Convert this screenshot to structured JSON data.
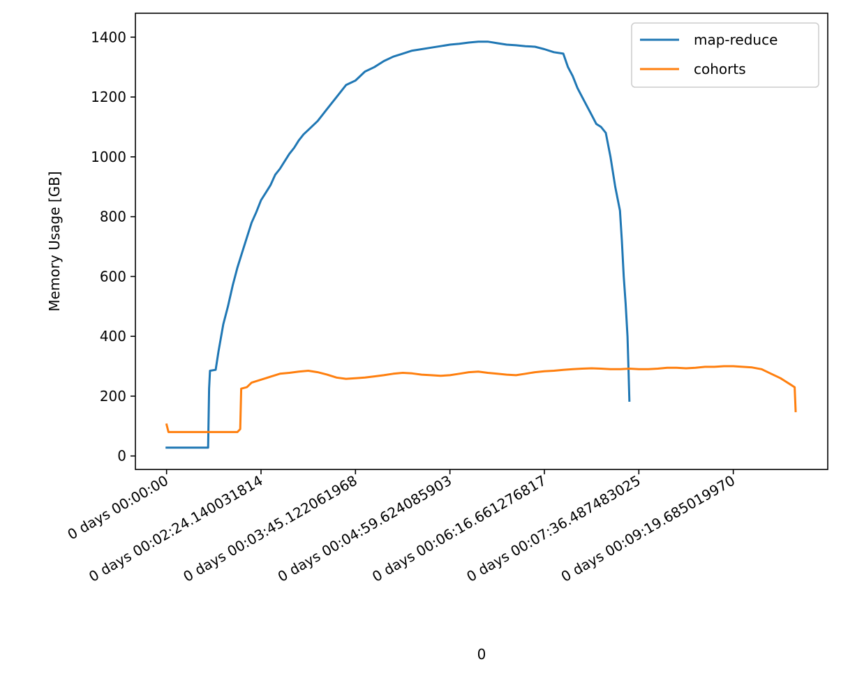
{
  "chart_data": {
    "type": "line",
    "title": "",
    "xlabel": "0",
    "ylabel": "Memory Usage [GB]",
    "x_tick_labels": [
      "0 days 00:00:00",
      "0 days 00:02:24.140031814",
      "0 days 00:03:45.122061968",
      "0 days 00:04:59.624085903",
      "0 days 00:06:16.661276817",
      "0 days 00:07:36.487483025",
      "0 days 00:09:19.685019970"
    ],
    "x_tick_index": [
      0,
      10,
      20,
      30,
      40,
      50,
      60
    ],
    "xlim": [
      -3.3,
      70
    ],
    "ylim": [
      -45,
      1480
    ],
    "yticks": [
      0,
      200,
      400,
      600,
      800,
      1000,
      1200,
      1400
    ],
    "grid": false,
    "legend_position": "top-right",
    "series": [
      {
        "name": "map-reduce",
        "color": "#1f77b4",
        "points": [
          [
            0,
            28
          ],
          [
            4.4,
            28
          ],
          [
            4.5,
            225
          ],
          [
            4.6,
            285
          ],
          [
            5.2,
            288
          ],
          [
            5.5,
            350
          ],
          [
            6,
            440
          ],
          [
            6.5,
            500
          ],
          [
            7,
            570
          ],
          [
            7.5,
            630
          ],
          [
            8,
            680
          ],
          [
            8.5,
            730
          ],
          [
            9,
            780
          ],
          [
            9.5,
            815
          ],
          [
            10,
            855
          ],
          [
            10.5,
            880
          ],
          [
            11,
            905
          ],
          [
            11.5,
            940
          ],
          [
            12,
            960
          ],
          [
            12.5,
            985
          ],
          [
            13,
            1010
          ],
          [
            13.5,
            1030
          ],
          [
            14,
            1055
          ],
          [
            14.5,
            1075
          ],
          [
            15,
            1090
          ],
          [
            16,
            1120
          ],
          [
            17,
            1160
          ],
          [
            18,
            1200
          ],
          [
            19,
            1240
          ],
          [
            20,
            1255
          ],
          [
            21,
            1285
          ],
          [
            22,
            1300
          ],
          [
            23,
            1320
          ],
          [
            24,
            1335
          ],
          [
            25,
            1345
          ],
          [
            26,
            1355
          ],
          [
            27,
            1360
          ],
          [
            28,
            1365
          ],
          [
            29,
            1370
          ],
          [
            30,
            1375
          ],
          [
            31,
            1378
          ],
          [
            32,
            1382
          ],
          [
            33,
            1385
          ],
          [
            34,
            1385
          ],
          [
            35,
            1380
          ],
          [
            36,
            1375
          ],
          [
            37,
            1373
          ],
          [
            38,
            1370
          ],
          [
            39,
            1368
          ],
          [
            40,
            1360
          ],
          [
            41,
            1350
          ],
          [
            42,
            1345
          ],
          [
            42.5,
            1300
          ],
          [
            43,
            1270
          ],
          [
            43.5,
            1230
          ],
          [
            44,
            1200
          ],
          [
            44.5,
            1170
          ],
          [
            45,
            1140
          ],
          [
            45.5,
            1110
          ],
          [
            46,
            1100
          ],
          [
            46.5,
            1080
          ],
          [
            47,
            1000
          ],
          [
            47.5,
            900
          ],
          [
            48,
            820
          ],
          [
            48.2,
            720
          ],
          [
            48.4,
            600
          ],
          [
            48.6,
            510
          ],
          [
            48.8,
            400
          ],
          [
            48.9,
            300
          ],
          [
            49,
            185
          ]
        ]
      },
      {
        "name": "cohorts",
        "color": "#ff7f0e",
        "points": [
          [
            0,
            105
          ],
          [
            0.2,
            80
          ],
          [
            7.5,
            80
          ],
          [
            7.8,
            90
          ],
          [
            7.9,
            225
          ],
          [
            8.5,
            230
          ],
          [
            9,
            245
          ],
          [
            10,
            255
          ],
          [
            11,
            265
          ],
          [
            12,
            275
          ],
          [
            13,
            278
          ],
          [
            14,
            282
          ],
          [
            15,
            285
          ],
          [
            16,
            280
          ],
          [
            17,
            272
          ],
          [
            18,
            262
          ],
          [
            19,
            258
          ],
          [
            20,
            260
          ],
          [
            21,
            262
          ],
          [
            22,
            266
          ],
          [
            23,
            270
          ],
          [
            24,
            275
          ],
          [
            25,
            278
          ],
          [
            26,
            276
          ],
          [
            27,
            272
          ],
          [
            28,
            270
          ],
          [
            29,
            268
          ],
          [
            30,
            270
          ],
          [
            31,
            275
          ],
          [
            32,
            280
          ],
          [
            33,
            282
          ],
          [
            34,
            278
          ],
          [
            35,
            275
          ],
          [
            36,
            272
          ],
          [
            37,
            270
          ],
          [
            38,
            275
          ],
          [
            39,
            280
          ],
          [
            40,
            283
          ],
          [
            41,
            285
          ],
          [
            42,
            288
          ],
          [
            43,
            290
          ],
          [
            44,
            292
          ],
          [
            45,
            293
          ],
          [
            46,
            292
          ],
          [
            47,
            290
          ],
          [
            48,
            290
          ],
          [
            49,
            292
          ],
          [
            50,
            290
          ],
          [
            51,
            290
          ],
          [
            52,
            292
          ],
          [
            53,
            295
          ],
          [
            54,
            295
          ],
          [
            55,
            293
          ],
          [
            56,
            295
          ],
          [
            57,
            298
          ],
          [
            58,
            298
          ],
          [
            59,
            300
          ],
          [
            60,
            300
          ],
          [
            61,
            298
          ],
          [
            62,
            296
          ],
          [
            63,
            290
          ],
          [
            64,
            275
          ],
          [
            65,
            260
          ],
          [
            65.5,
            250
          ],
          [
            66,
            240
          ],
          [
            66.5,
            230
          ],
          [
            66.6,
            150
          ]
        ]
      }
    ]
  }
}
